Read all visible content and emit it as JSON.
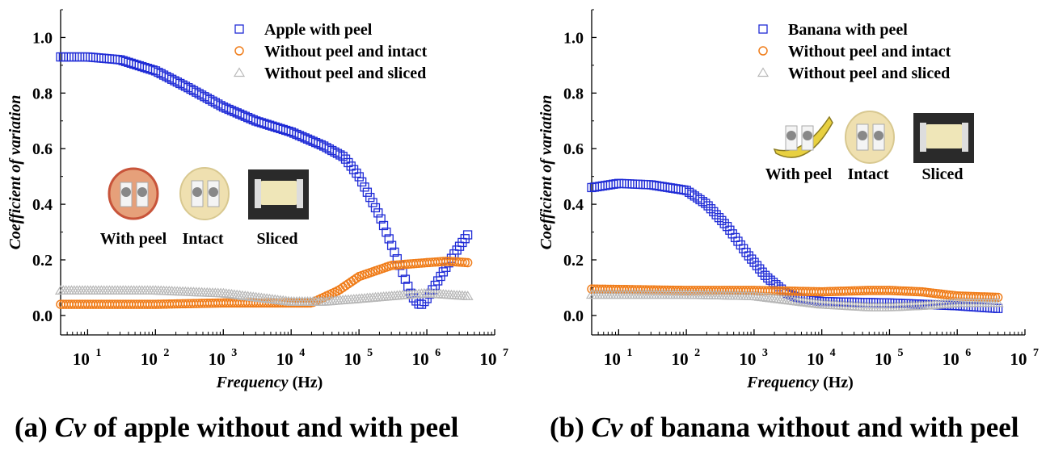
{
  "captions": {
    "a": {
      "prefix": "(a) ",
      "italic": "Cv",
      "rest": " of apple without and with peel"
    },
    "b": {
      "prefix": "(b) ",
      "italic": "Cv",
      "rest": " of banana without and with peel"
    }
  },
  "colors": {
    "blue": "#1f2bd6",
    "orange": "#f07d1a",
    "gray": "#b8b8b8",
    "axis": "#000000"
  },
  "chart_data": [
    {
      "type": "scatter",
      "x_scale": "log",
      "xlim": [
        4,
        10000000
      ],
      "ylim": [
        -0.07,
        1.1
      ],
      "x_tick_labels": [
        "10",
        "10",
        "10",
        "10",
        "10",
        "10",
        "10"
      ],
      "x_tick_exponents": [
        "1",
        "2",
        "3",
        "4",
        "5",
        "6",
        "7"
      ],
      "x_tick_values": [
        10,
        100,
        1000,
        10000,
        100000,
        1000000,
        10000000
      ],
      "y_tick_values": [
        0.0,
        0.2,
        0.4,
        0.6,
        0.8,
        1.0
      ],
      "y_tick_labels": [
        "0.0",
        "0.2",
        "0.4",
        "0.6",
        "0.8",
        "1.0"
      ],
      "xlabel": {
        "italic": "Frequency",
        "unit": " (Hz)"
      },
      "ylabel": "Coefficient of  variation",
      "legend_position": "top-right",
      "series": [
        {
          "name": "Apple with peel",
          "marker": "square",
          "color_key": "blue",
          "x": [
            4,
            10,
            30,
            100,
            300,
            1000,
            3000,
            10000,
            30000,
            60000,
            100000,
            200000,
            400000,
            600000,
            800000,
            1000000,
            1500000,
            2500000,
            4000000
          ],
          "y": [
            0.93,
            0.93,
            0.92,
            0.88,
            0.82,
            0.75,
            0.7,
            0.66,
            0.61,
            0.57,
            0.5,
            0.36,
            0.18,
            0.07,
            0.035,
            0.06,
            0.13,
            0.22,
            0.29
          ]
        },
        {
          "name": "Without peel and intact",
          "marker": "circle",
          "color_key": "orange",
          "x": [
            4,
            100,
            1000,
            5000,
            20000,
            50000,
            100000,
            300000,
            1000000,
            2000000,
            4000000
          ],
          "y": [
            0.04,
            0.04,
            0.045,
            0.045,
            0.045,
            0.09,
            0.14,
            0.18,
            0.19,
            0.195,
            0.19
          ]
        },
        {
          "name": "Without peel and sliced",
          "marker": "triangle",
          "color_key": "gray",
          "x": [
            4,
            100,
            1000,
            10000,
            30000,
            100000,
            300000,
            1000000,
            4000000
          ],
          "y": [
            0.09,
            0.09,
            0.08,
            0.05,
            0.05,
            0.06,
            0.07,
            0.08,
            0.07
          ]
        }
      ],
      "inset_labels": [
        "With peel",
        "Intact",
        "Sliced"
      ]
    },
    {
      "type": "scatter",
      "x_scale": "log",
      "xlim": [
        4,
        10000000
      ],
      "ylim": [
        -0.07,
        1.1
      ],
      "x_tick_labels": [
        "10",
        "10",
        "10",
        "10",
        "10",
        "10",
        "10"
      ],
      "x_tick_exponents": [
        "1",
        "2",
        "3",
        "4",
        "5",
        "6",
        "7"
      ],
      "x_tick_values": [
        10,
        100,
        1000,
        10000,
        100000,
        1000000,
        10000000
      ],
      "y_tick_values": [
        0.0,
        0.2,
        0.4,
        0.6,
        0.8,
        1.0
      ],
      "y_tick_labels": [
        "0.0",
        "0.2",
        "0.4",
        "0.6",
        "0.8",
        "1.0"
      ],
      "xlabel": {
        "italic": "Frequency",
        "unit": " (Hz)"
      },
      "ylabel": "Coefficient of  variation",
      "legend_position": "top-right",
      "series": [
        {
          "name": "Banana with peel",
          "marker": "square",
          "color_key": "blue",
          "x": [
            4,
            10,
            30,
            100,
            200,
            400,
            800,
            1500,
            3000,
            5000,
            10000,
            100000,
            1000000,
            4000000
          ],
          "y": [
            0.46,
            0.475,
            0.47,
            0.45,
            0.4,
            0.32,
            0.22,
            0.14,
            0.08,
            0.06,
            0.05,
            0.045,
            0.035,
            0.025
          ]
        },
        {
          "name": "Without peel and intact",
          "marker": "circle",
          "color_key": "orange",
          "x": [
            4,
            100,
            1000,
            10000,
            50000,
            100000,
            300000,
            1000000,
            4000000
          ],
          "y": [
            0.095,
            0.09,
            0.09,
            0.085,
            0.09,
            0.09,
            0.085,
            0.07,
            0.065
          ]
        },
        {
          "name": "Without peel and sliced",
          "marker": "triangle",
          "color_key": "gray",
          "x": [
            4,
            100,
            1000,
            10000,
            50000,
            100000,
            300000,
            1000000,
            4000000
          ],
          "y": [
            0.075,
            0.075,
            0.07,
            0.04,
            0.03,
            0.03,
            0.035,
            0.045,
            0.045
          ]
        }
      ],
      "inset_labels": [
        "With peel",
        "Intact",
        "Sliced"
      ]
    }
  ]
}
